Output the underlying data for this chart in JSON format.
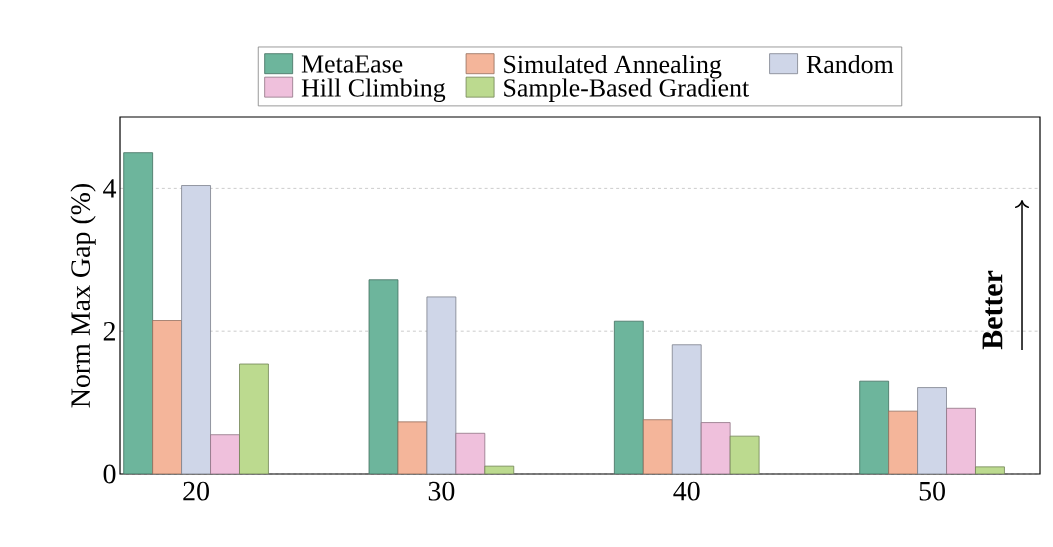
{
  "chart_data": {
    "type": "bar",
    "ylabel": "Norm Max Gap (%)",
    "categories": [
      "20",
      "30",
      "40",
      "50"
    ],
    "series": [
      {
        "name": "MetaEase",
        "color": "#6db59c",
        "values": [
          4.5,
          2.72,
          2.14,
          1.3
        ]
      },
      {
        "name": "Simulated Annealing",
        "color": "#f4b59a",
        "values": [
          2.15,
          0.73,
          0.76,
          0.88
        ]
      },
      {
        "name": "Random",
        "color": "#cfd6e8",
        "values": [
          4.04,
          2.48,
          1.81,
          1.21
        ]
      },
      {
        "name": "Hill Climbing",
        "color": "#efc0dc",
        "values": [
          0.55,
          0.57,
          0.72,
          0.92
        ]
      },
      {
        "name": "Sample-Based Gradient",
        "color": "#bcda8f",
        "values": [
          1.54,
          0.11,
          0.53,
          0.1
        ]
      }
    ],
    "ylim": [
      0,
      5
    ],
    "yticks": [
      0,
      2,
      4
    ],
    "grid": "y",
    "legend": "top",
    "annotations": [
      "Better"
    ]
  }
}
